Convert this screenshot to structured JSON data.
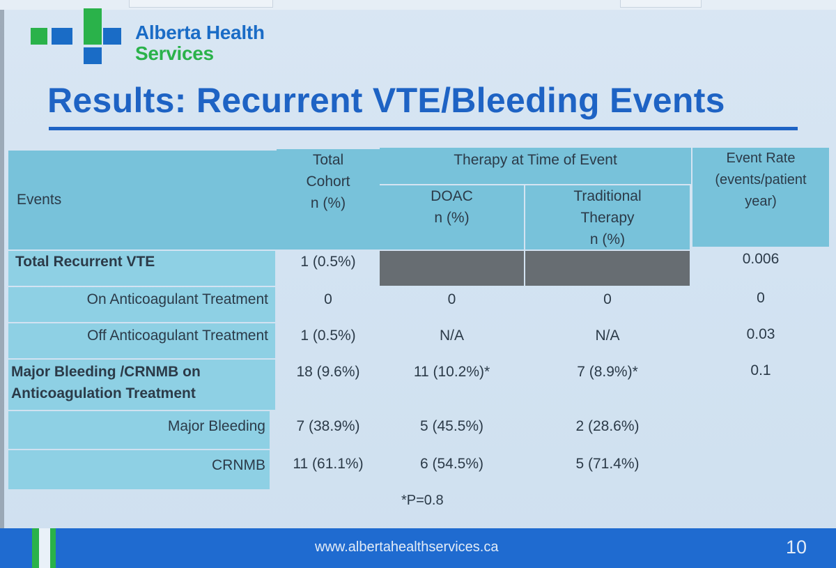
{
  "logo": {
    "line1": "Alberta Health",
    "line2": "Services"
  },
  "slide": {
    "title": "Results: Recurrent VTE/Bleeding Events",
    "footnote": "*P=0.8",
    "url": "www.albertahealthservices.ca",
    "page": "10"
  },
  "table": {
    "headers": {
      "events": "Events",
      "total_l1": "Total",
      "total_l2": "Cohort",
      "total_l3": "n (%)",
      "therapy": "Therapy at Time of Event",
      "doac_l1": "DOAC",
      "doac_l2": "n (%)",
      "trad_l1": "Traditional",
      "trad_l2": "Therapy",
      "trad_l3": "n (%)",
      "rate_l1": "Event Rate",
      "rate_l2": "(events/patient",
      "rate_l3": "year)"
    },
    "rows": [
      {
        "label": "Total Recurrent VTE",
        "total": "1 (0.5%)",
        "doac": "",
        "trad": "",
        "rate": "0.006"
      },
      {
        "label": "On Anticoagulant Treatment",
        "total": "0",
        "doac": "0",
        "trad": "0",
        "rate": "0"
      },
      {
        "label": "Off Anticoagulant Treatment",
        "total": "1 (0.5%)",
        "doac": "N/A",
        "trad": "N/A",
        "rate": "0.03"
      },
      {
        "label_l1": "Major Bleeding /CRNMB on",
        "label_l2": "Anticoagulation Treatment",
        "total": "18 (9.6%)",
        "doac": "11 (10.2%)*",
        "trad": "7 (8.9%)*",
        "rate": "0.1"
      },
      {
        "label": "Major Bleeding",
        "total": "7 (38.9%)",
        "doac": "5 (45.5%)",
        "trad": "2 (28.6%)",
        "rate": ""
      },
      {
        "label": "CRNMB",
        "total": "11 (61.1%)",
        "doac": "6 (54.5%)",
        "trad": "5 (71.4%)",
        "rate": ""
      }
    ]
  }
}
